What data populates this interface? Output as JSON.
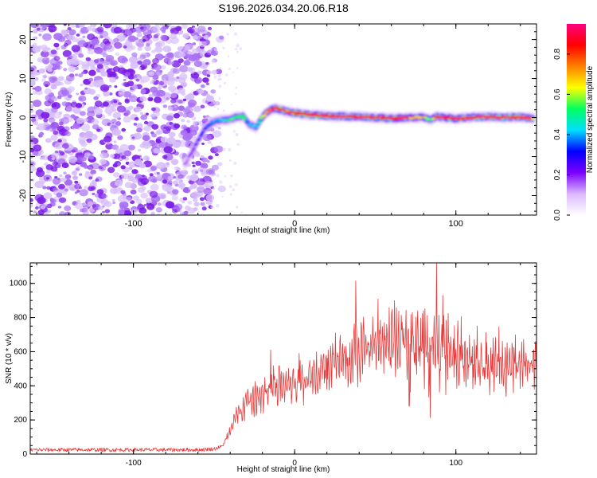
{
  "page": {
    "title": "S196.2026.034.20.06.R18"
  },
  "chart_data": [
    {
      "type": "heatmap",
      "title": "S196.2026.034.20.06.R18",
      "xlabel": "Height of straight line (km)",
      "ylabel": "Frequency (Hz)",
      "xlim": [
        -164,
        150
      ],
      "ylim": [
        -25,
        24
      ],
      "x_ticks": [
        -100,
        0,
        100
      ],
      "x_tick_labels": [
        "-100",
        "0",
        "100"
      ],
      "y_ticks": [
        -20,
        -10,
        0,
        10,
        20
      ],
      "y_tick_labels": [
        "-20",
        "-10",
        "0",
        "10",
        "20"
      ],
      "noise_region_x": [
        -164,
        -52
      ],
      "signal_track": {
        "x": [
          -68,
          -64,
          -60,
          -56,
          -52,
          -48,
          -44,
          -40,
          -36,
          -32,
          -28,
          -24,
          -20,
          -16,
          -12,
          -8,
          -4,
          0,
          10,
          20,
          30,
          40,
          50,
          60,
          70,
          80,
          84,
          88,
          100,
          110,
          120,
          130,
          140,
          148
        ],
        "freq": [
          -12,
          -9,
          -6,
          -3,
          -1.5,
          -0.8,
          -0.6,
          -0.5,
          0.2,
          0.3,
          -1.8,
          -2.6,
          0.2,
          1.8,
          2.4,
          1.9,
          1.4,
          1.2,
          0.7,
          0.4,
          0.3,
          0.2,
          0,
          -0.2,
          -0.1,
          0.1,
          -0.6,
          0.2,
          -0.3,
          0,
          0.2,
          0,
          0.1,
          -0.2
        ],
        "amplitude": [
          0.15,
          0.2,
          0.25,
          0.3,
          0.35,
          0.4,
          0.45,
          0.5,
          0.55,
          0.5,
          0.4,
          0.45,
          0.6,
          0.7,
          0.85,
          0.9,
          0.8,
          0.9,
          0.95,
          0.9,
          0.9,
          0.8,
          0.85,
          0.8,
          0.75,
          0.7,
          0.5,
          0.8,
          0.85,
          0.9,
          0.85,
          0.9,
          0.85,
          0.75
        ]
      },
      "colorbar": {
        "label": "Normalized spectral amplitude",
        "range": [
          0,
          0.95
        ],
        "ticks": [
          0.0,
          0.2,
          0.4,
          0.6,
          0.8
        ],
        "tick_labels": [
          "0.0",
          "0.2",
          "0.4",
          "0.6",
          "0.8"
        ],
        "colors": [
          "#ffffff",
          "#dcb8ff",
          "#7b00ff",
          "#0000ff",
          "#00e0ff",
          "#00ff60",
          "#ffff00",
          "#ff8000",
          "#ff0000",
          "#ff0080"
        ]
      }
    },
    {
      "type": "line",
      "xlabel": "Height of straight line (km)",
      "ylabel": "SNR (10 * v/v)",
      "xlim": [
        -164,
        150
      ],
      "ylim": [
        0,
        1120
      ],
      "x_ticks": [
        -100,
        0,
        100
      ],
      "x_tick_labels": [
        "-100",
        "0",
        "100"
      ],
      "y_ticks": [
        0,
        200,
        400,
        600,
        800,
        1000
      ],
      "y_tick_labels": [
        "0",
        "200",
        "400",
        "600",
        "800",
        "1000"
      ],
      "color": "#e83a3a",
      "envelope": {
        "x": [
          -164,
          -100,
          -60,
          -50,
          -45,
          -40,
          -36,
          -30,
          -20,
          -10,
          0,
          10,
          20,
          30,
          40,
          50,
          60,
          70,
          80,
          90,
          100,
          110,
          120,
          130,
          140,
          150
        ],
        "y": [
          25,
          25,
          25,
          30,
          45,
          130,
          220,
          300,
          340,
          390,
          420,
          455,
          500,
          560,
          600,
          630,
          640,
          650,
          655,
          660,
          560,
          520,
          510,
          510,
          515,
          520
        ]
      },
      "spikes": [
        {
          "x": -15,
          "y": 610
        },
        {
          "x": 38,
          "y": 1015
        },
        {
          "x": 73,
          "y": 830
        },
        {
          "x": 80,
          "y": 840
        },
        {
          "x": 88,
          "y": 1120
        },
        {
          "x": 92,
          "y": 930
        }
      ]
    }
  ]
}
